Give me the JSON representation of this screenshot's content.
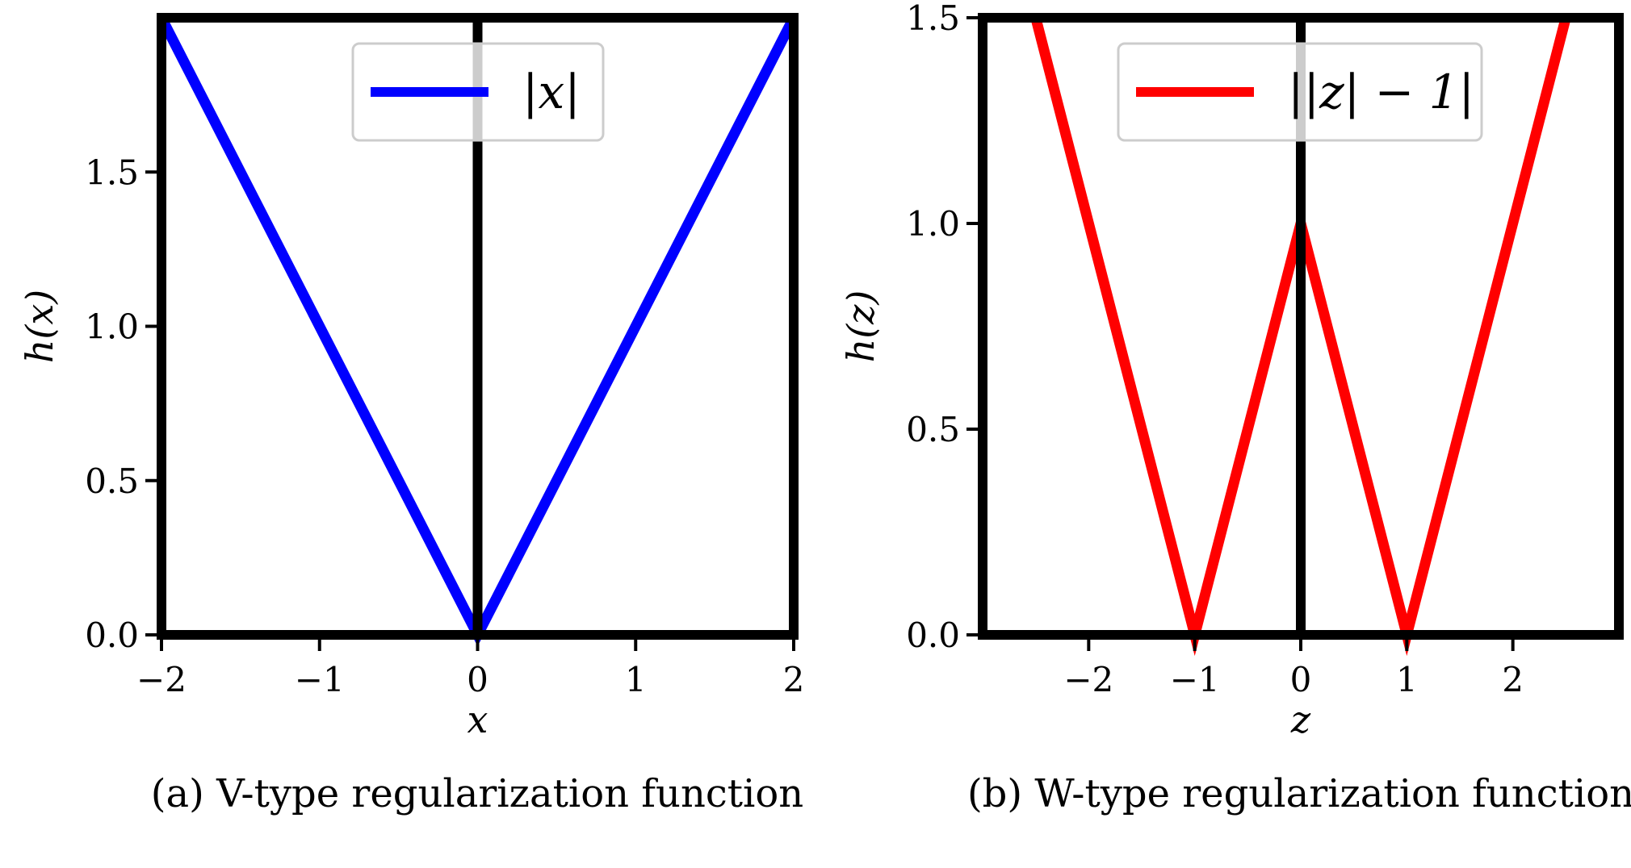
{
  "chart_data": [
    {
      "type": "line",
      "caption": "(a) V-type regularization function",
      "xlabel": "x",
      "ylabel": "h(x)",
      "xlim": [
        -2,
        2
      ],
      "ylim": [
        0,
        2
      ],
      "xticks": [
        -2,
        -1,
        0,
        1,
        2
      ],
      "xtick_labels": [
        "−2",
        "−1",
        "0",
        "1",
        "2"
      ],
      "yticks": [
        0.0,
        0.5,
        1.0,
        1.5
      ],
      "ytick_labels": [
        "0.0",
        "0.5",
        "1.0",
        "1.5"
      ],
      "vline_x": 0,
      "grid": false,
      "legend_position": "top-center",
      "series": [
        {
          "name": "|x|",
          "color": "#0000ff",
          "x": [
            -2,
            0,
            2
          ],
          "y": [
            2,
            0,
            2
          ]
        }
      ]
    },
    {
      "type": "line",
      "caption": "(b) W-type regularization function",
      "xlabel": "z",
      "ylabel": "h(z)",
      "xlim": [
        -3,
        3
      ],
      "ylim": [
        0,
        1.5
      ],
      "xticks": [
        -2,
        -1,
        0,
        1,
        2
      ],
      "xtick_labels": [
        "−2",
        "−1",
        "0",
        "1",
        "2"
      ],
      "yticks": [
        0.0,
        0.5,
        1.0,
        1.5
      ],
      "ytick_labels": [
        "0.0",
        "0.5",
        "1.0",
        "1.5"
      ],
      "vline_x": 0,
      "grid": false,
      "legend_position": "top-center",
      "series": [
        {
          "name": "||z| − 1|",
          "color": "#ff0000",
          "x": [
            -2.5,
            -1,
            0,
            1,
            2.5
          ],
          "y": [
            1.5,
            0,
            1,
            0,
            1.5
          ]
        }
      ]
    }
  ]
}
